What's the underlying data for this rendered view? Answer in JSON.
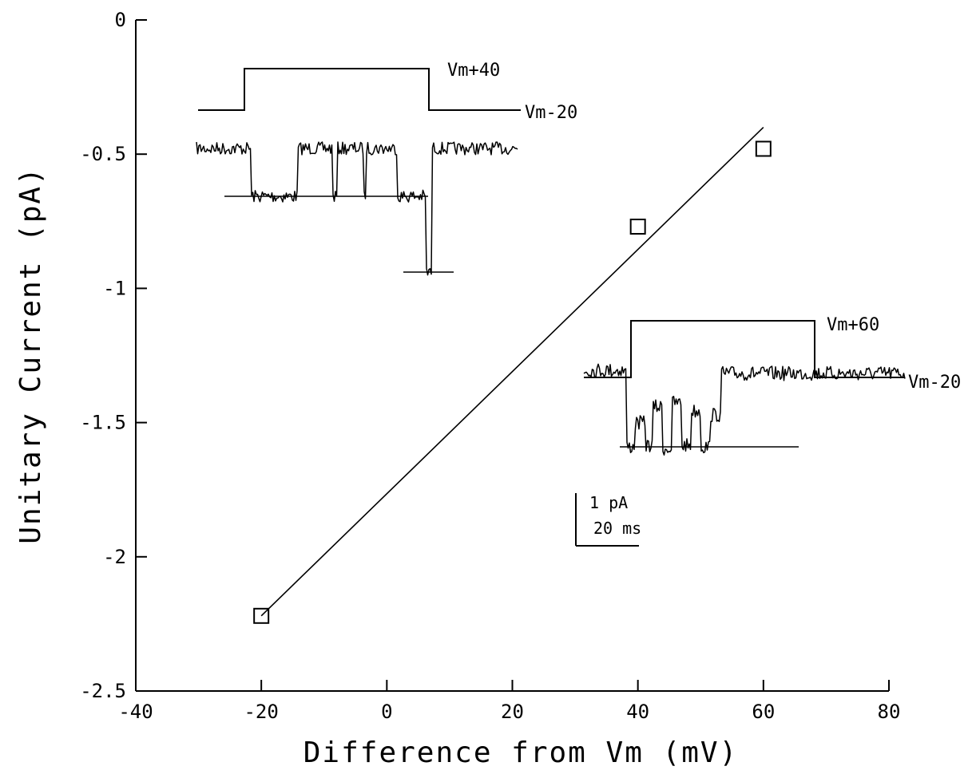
{
  "chart_data": {
    "type": "scatter",
    "title": "",
    "xlabel": "Difference from Vm (mV)",
    "ylabel": "Unitary Current (pA)",
    "xlim": [
      -40,
      80
    ],
    "ylim": [
      -2.5,
      0
    ],
    "x_ticks": [
      -40,
      -20,
      0,
      20,
      40,
      60,
      80
    ],
    "y_ticks": [
      0,
      -0.5,
      -1,
      -1.5,
      -2,
      -2.5
    ],
    "x_tick_labels": [
      "-40",
      "-20",
      "0",
      "20",
      "40",
      "60",
      "80"
    ],
    "y_tick_labels": [
      "0",
      "-0.5",
      "-1",
      "-1.5",
      "-2",
      "-2.5"
    ],
    "grid": false,
    "points": [
      {
        "x": -20,
        "y": -2.22
      },
      {
        "x": 40,
        "y": -0.77
      },
      {
        "x": 60,
        "y": -0.48
      }
    ],
    "fit_line": {
      "x": [
        -20,
        60
      ],
      "y": [
        -2.22,
        -0.4
      ]
    },
    "annotations": {
      "inset1_high": "Vm+40",
      "inset1_low": "Vm-20",
      "inset2_high": "Vm+60",
      "inset2_low": "Vm-20",
      "scale_current": "1 pA",
      "scale_time": "20 ms"
    }
  }
}
